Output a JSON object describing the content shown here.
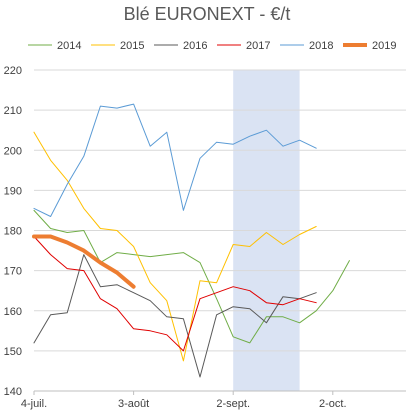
{
  "chart_data": {
    "type": "line",
    "title": "Blé EURONEXT - €/t",
    "xlabel": "",
    "ylabel": "",
    "x_ticks": [
      "4-juil.",
      "3-août",
      "2-sept.",
      "2-oct."
    ],
    "ylim": [
      140,
      220
    ],
    "yticks": [
      140,
      150,
      160,
      170,
      180,
      190,
      200,
      210,
      220
    ],
    "grid": "horizontal",
    "legend_position": "top",
    "highlight_band": {
      "from_week": 12,
      "to_week": 16,
      "color": "#dae3f3"
    },
    "x_weeks": [
      0,
      1,
      2,
      3,
      4,
      5,
      6,
      7,
      8,
      9,
      10,
      11,
      12,
      13,
      14,
      15,
      16,
      17,
      18,
      19,
      20,
      21,
      22
    ],
    "series": [
      {
        "name": "2014",
        "color": "#70ad47",
        "width": 1,
        "values": [
          185,
          180.5,
          179.5,
          180,
          172,
          174.5,
          174,
          173.5,
          174,
          174.5,
          172,
          163,
          153.5,
          152,
          158.5,
          158.5,
          157,
          160,
          165,
          172.5
        ]
      },
      {
        "name": "2015",
        "color": "#ffc000",
        "width": 1,
        "values": [
          204.5,
          197.5,
          192.5,
          185.5,
          180.5,
          180,
          176,
          167,
          162.5,
          147.5,
          167.5,
          167,
          176.5,
          176,
          179.5,
          176.5,
          179,
          181
        ]
      },
      {
        "name": "2016",
        "color": "#595959",
        "width": 1,
        "values": [
          152,
          159,
          159.5,
          174,
          166,
          166.5,
          164.5,
          162.5,
          158.5,
          158,
          143.5,
          159,
          161,
          160.5,
          157,
          163.5,
          163,
          164.5
        ]
      },
      {
        "name": "2017",
        "color": "#e00000",
        "width": 1,
        "values": [
          178.5,
          174,
          170.5,
          170,
          163,
          160.5,
          155.5,
          155,
          154,
          150,
          163,
          164.5,
          166,
          165,
          162,
          161.5,
          163,
          162
        ]
      },
      {
        "name": "2018",
        "color": "#5b9bd5",
        "width": 1,
        "values": [
          185.5,
          183.5,
          191.5,
          198.5,
          211,
          210.5,
          211.5,
          201,
          204.5,
          185,
          198,
          202,
          201.5,
          203.5,
          205,
          201,
          202.5,
          200.5
        ]
      },
      {
        "name": "2019",
        "color": "#ed7d31",
        "width": 4,
        "values": [
          178.5,
          178.5,
          177,
          175,
          172,
          169.5,
          166
        ]
      }
    ]
  },
  "ui": {
    "bg_color": "#ffffff",
    "grid_color": "#d9d9d9"
  }
}
